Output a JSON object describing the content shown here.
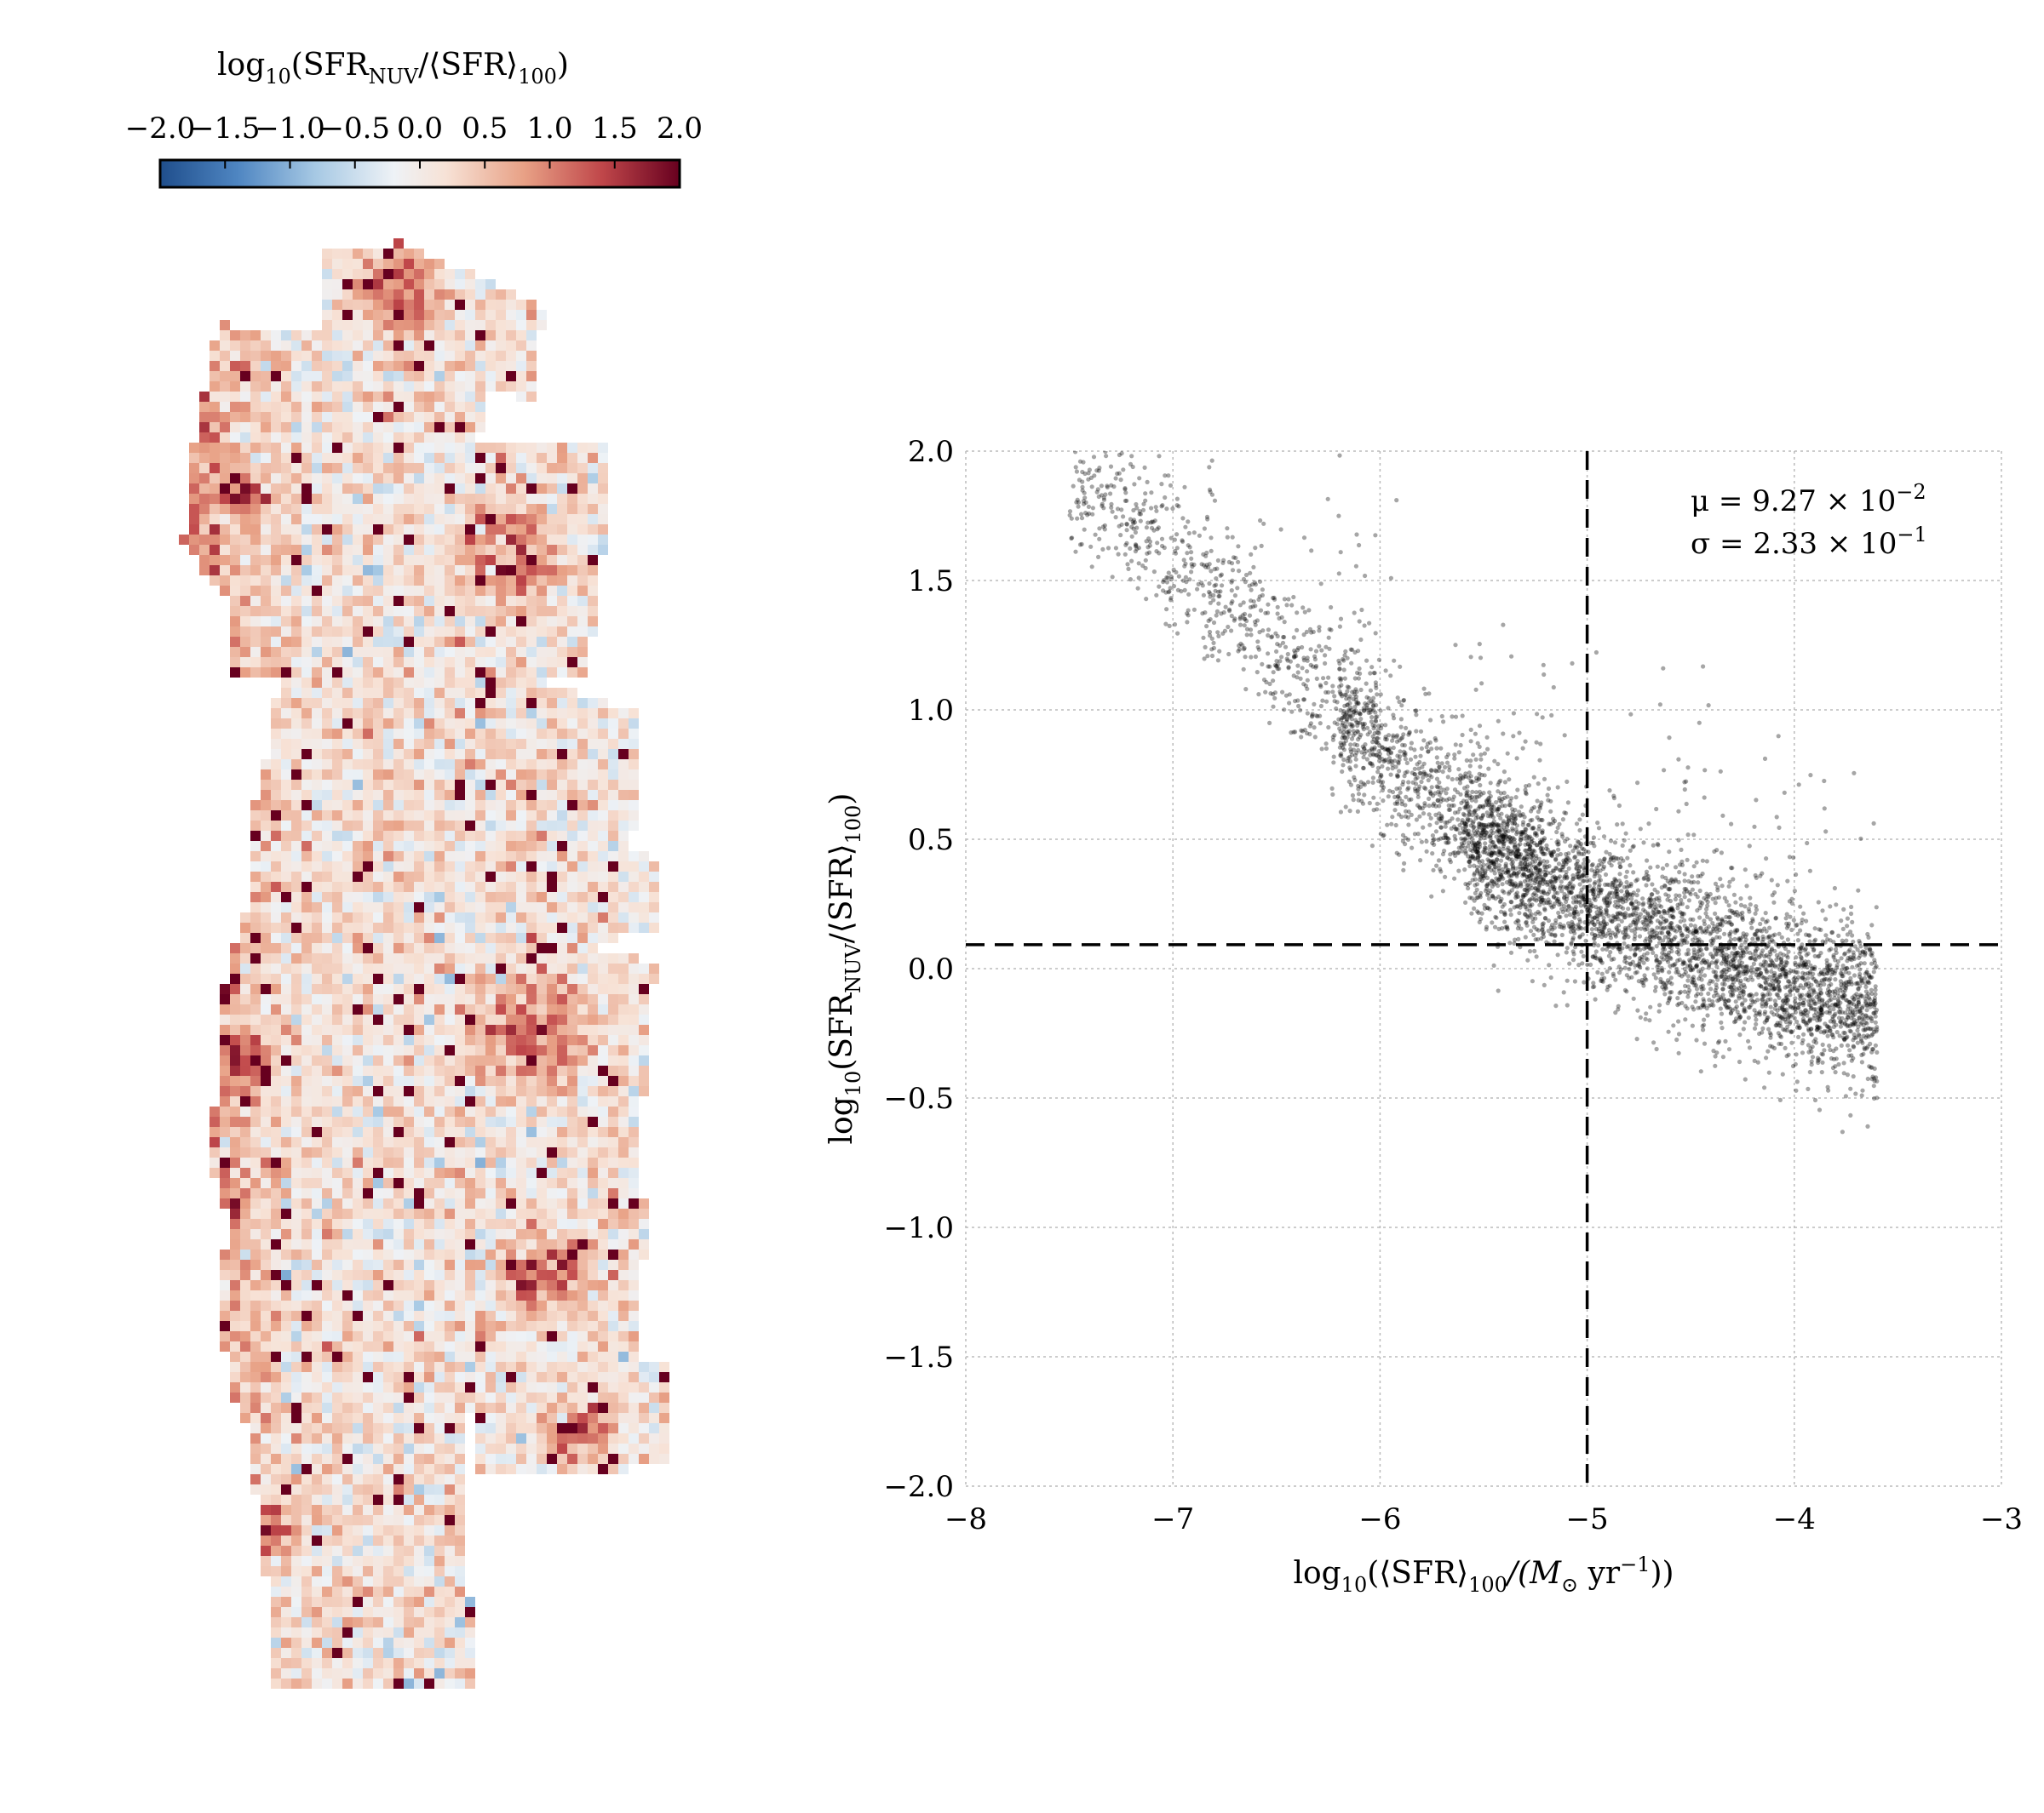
{
  "colorbar": {
    "label_main": "log",
    "label_sub10": "10",
    "label_open": "(SFR",
    "label_sub_nuv": "NUV",
    "label_mid": "/⟨SFR⟩",
    "label_sub100": "100",
    "label_close": ")",
    "ticks": [
      "−2.0",
      "−1.5",
      "−1.0",
      "−0.5",
      "0.0",
      "0.5",
      "1.0",
      "1.5",
      "2.0"
    ],
    "tick_values": [
      -2.0,
      -1.5,
      -1.0,
      -0.5,
      0.0,
      0.5,
      1.0,
      1.5,
      2.0
    ],
    "vmin": -2.0,
    "vmax": 2.0,
    "colormap": "RdBu_r",
    "colors": [
      "#2c5f9e",
      "#6a9fd0",
      "#c4daed",
      "#f3f3f3",
      "#f7d3bf",
      "#d98266",
      "#a8242e",
      "#6b0a1e"
    ]
  },
  "chart_data": [
    {
      "type": "heatmap",
      "description_values": "spatial map of log10(SFR_NUV/<SFR>_100) per pixel",
      "value_range": [
        -2.0,
        2.0
      ]
    },
    {
      "type": "scatter",
      "x_ticks": [
        "−8",
        "−7",
        "−6",
        "−5",
        "−4",
        "−3"
      ],
      "x_tick_values": [
        -8,
        -7,
        -6,
        -5,
        -4,
        -3
      ],
      "y_ticks": [
        "2.0",
        "1.5",
        "1.0",
        "0.5",
        "0.0",
        "−0.5",
        "−1.0",
        "−1.5",
        "−2.0"
      ],
      "y_tick_values": [
        2.0,
        1.5,
        1.0,
        0.5,
        0.0,
        -0.5,
        -1.0,
        -1.5,
        -2.0
      ],
      "xlim": [
        -8,
        -3
      ],
      "ylim": [
        -2.0,
        2.0
      ],
      "grid": true,
      "point_color": "#000000",
      "trend": {
        "x": [
          -7.4,
          -7.0,
          -6.5,
          -6.0,
          -5.5,
          -5.0,
          -4.5,
          -4.0,
          -3.6
        ],
        "y": [
          1.85,
          1.6,
          1.25,
          0.82,
          0.5,
          0.25,
          0.08,
          -0.08,
          -0.15
        ]
      },
      "hline_y": 0.0927,
      "vline_x": -5.0,
      "stats": {
        "mu_label": "μ = 9.27 × 10",
        "mu_exp": "−2",
        "sigma_label": "σ = 2.33 × 10",
        "sigma_exp": "−1"
      },
      "ylabel": {
        "main": "log",
        "sub10": "10",
        "open": "(SFR",
        "sub_nuv": "NUV",
        "mid": "/⟨SFR⟩",
        "sub100": "100",
        "close": ")"
      },
      "xlabel": {
        "main": "log",
        "sub10": "10",
        "open": "(⟨SFR⟩",
        "sub100": "100",
        "mid": "/(M",
        "sun": "⊙",
        "yr": " yr",
        "exp": "−1",
        "close": "))"
      }
    }
  ]
}
